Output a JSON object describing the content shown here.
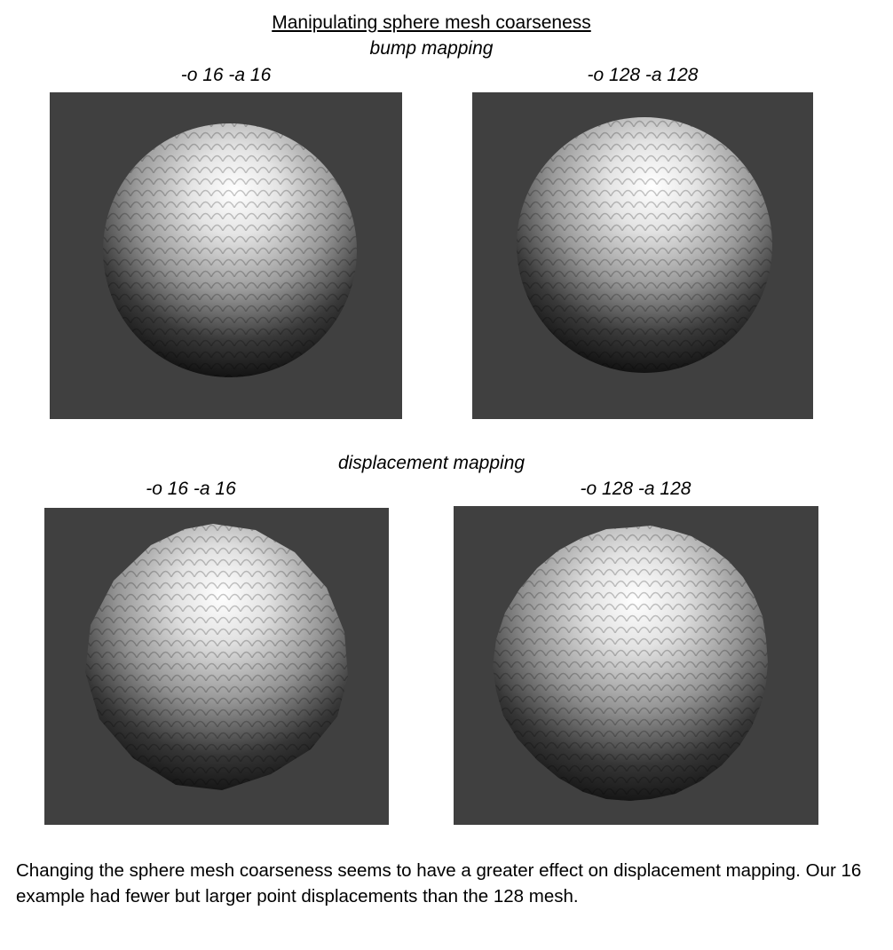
{
  "document": {
    "title": "Manipulating sphere mesh coarseness",
    "sections": [
      {
        "heading": "bump mapping",
        "panels": [
          {
            "label": "-o 16 -a 16"
          },
          {
            "label": "-o 128 -a 128"
          }
        ]
      },
      {
        "heading": "displacement mapping",
        "panels": [
          {
            "label": "-o 16 -a 16"
          },
          {
            "label": "-o 128 -a 128"
          }
        ]
      }
    ],
    "caption": "Changing the sphere mesh coarseness seems to have a greater effect on displacement mapping. Our 16 example had fewer but larger point displacements than the 128 mesh."
  },
  "colors": {
    "render_background": "#404040",
    "sphere_highlight": "#ffffff",
    "sphere_shadow": "#050505"
  }
}
